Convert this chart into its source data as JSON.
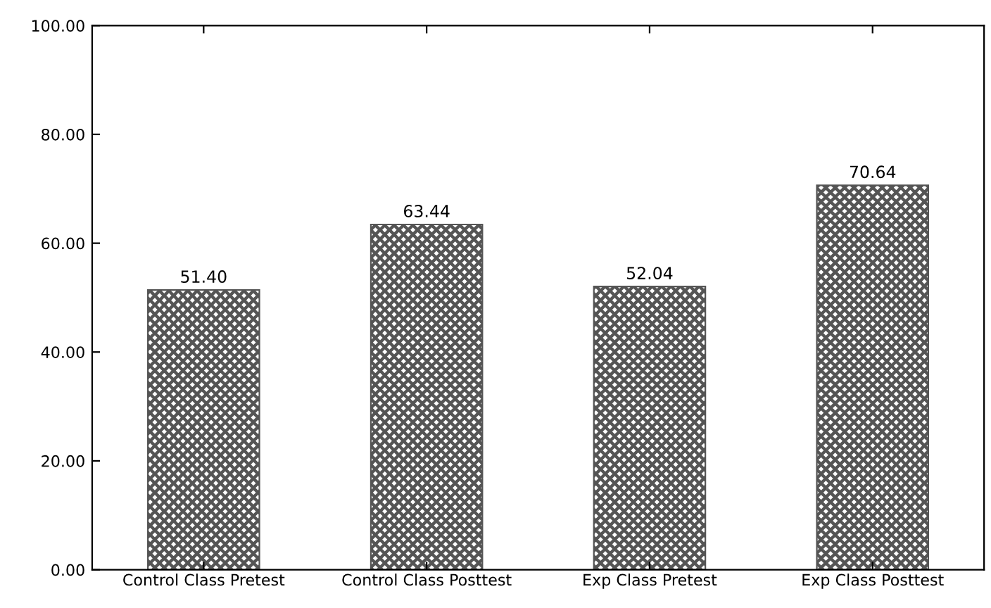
{
  "chart_data": {
    "type": "bar",
    "categories": [
      "Control Class Pretest",
      "Control Class Posttest",
      "Exp Class Pretest",
      "Exp Class Posttest"
    ],
    "values": [
      51.4,
      63.44,
      52.04,
      70.64
    ],
    "value_labels": [
      "51.40",
      "63.44",
      "52.04",
      "70.64"
    ],
    "color": "#555555",
    "ylim": [
      0,
      100
    ],
    "yticks": [
      {
        "value": 0,
        "label": "0.00"
      },
      {
        "value": 20,
        "label": "20.00"
      },
      {
        "value": 40,
        "label": "40.00"
      },
      {
        "value": 60,
        "label": "60.00"
      },
      {
        "value": 80,
        "label": "80.00"
      },
      {
        "value": 100,
        "label": "100.00"
      }
    ],
    "grid": false
  }
}
